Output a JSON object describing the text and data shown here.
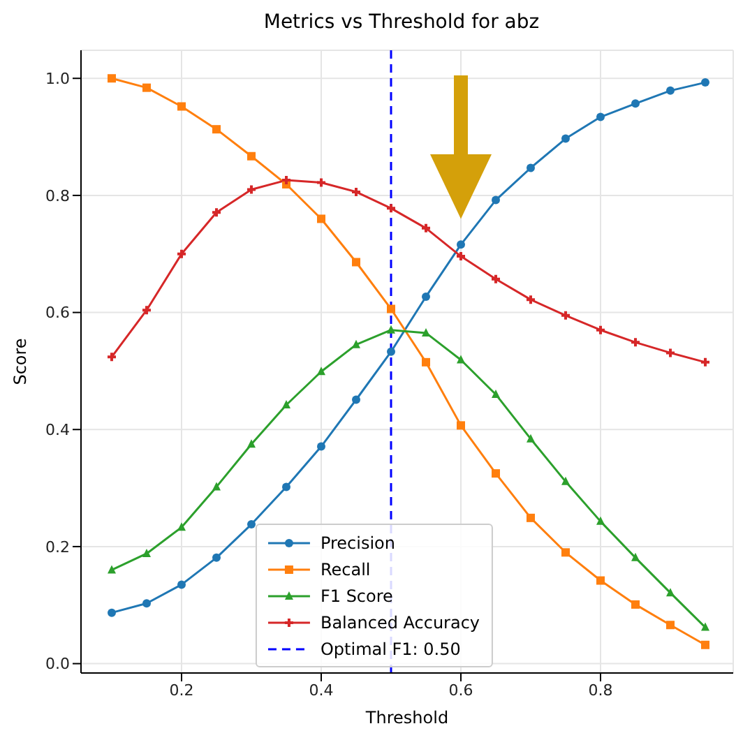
{
  "chart_data": {
    "type": "line",
    "title": "Metrics vs Threshold for abz",
    "xlabel": "Threshold",
    "ylabel": "Score",
    "x": [
      0.1,
      0.15,
      0.2,
      0.25,
      0.3,
      0.35,
      0.4,
      0.45,
      0.5,
      0.55,
      0.6,
      0.65,
      0.7,
      0.75,
      0.8,
      0.85,
      0.9,
      0.95
    ],
    "series": [
      {
        "name": "Precision",
        "color": "#1f77b4",
        "marker": "circle",
        "values": [
          0.087,
          0.103,
          0.135,
          0.181,
          0.238,
          0.302,
          0.371,
          0.451,
          0.533,
          0.627,
          0.716,
          0.792,
          0.847,
          0.897,
          0.934,
          0.957,
          0.979,
          0.993
        ]
      },
      {
        "name": "Recall",
        "color": "#ff7f0e",
        "marker": "square",
        "values": [
          1.0,
          0.984,
          0.952,
          0.913,
          0.867,
          0.819,
          0.76,
          0.686,
          0.606,
          0.515,
          0.407,
          0.325,
          0.249,
          0.19,
          0.142,
          0.101,
          0.066,
          0.032
        ]
      },
      {
        "name": "F1 Score",
        "color": "#2ca02c",
        "marker": "triangle",
        "values": [
          0.16,
          0.188,
          0.233,
          0.302,
          0.375,
          0.442,
          0.499,
          0.545,
          0.57,
          0.565,
          0.519,
          0.46,
          0.384,
          0.311,
          0.243,
          0.181,
          0.121,
          0.062
        ]
      },
      {
        "name": "Balanced Accuracy",
        "color": "#d62728",
        "marker": "cross",
        "values": [
          0.524,
          0.604,
          0.7,
          0.771,
          0.81,
          0.826,
          0.822,
          0.806,
          0.778,
          0.744,
          0.696,
          0.657,
          0.622,
          0.595,
          0.57,
          0.549,
          0.531,
          0.515
        ]
      }
    ],
    "ref_lines": [
      {
        "axis": "x",
        "value": 0.5,
        "label": "Optimal F1: 0.50",
        "color": "#0000ff",
        "line_style": "dashed"
      }
    ],
    "xlim": [
      0.056,
      0.99
    ],
    "ylim": [
      -0.016,
      1.048
    ],
    "xticks": [
      0.2,
      0.4,
      0.6,
      0.8
    ],
    "yticks": [
      {
        "value": 0,
        "label": "0.0"
      },
      0.2,
      0.4,
      0.6,
      0.8,
      {
        "value": 1,
        "label": "1.0"
      }
    ],
    "grid": true,
    "legend": "bottom",
    "line_style": "solid"
  }
}
